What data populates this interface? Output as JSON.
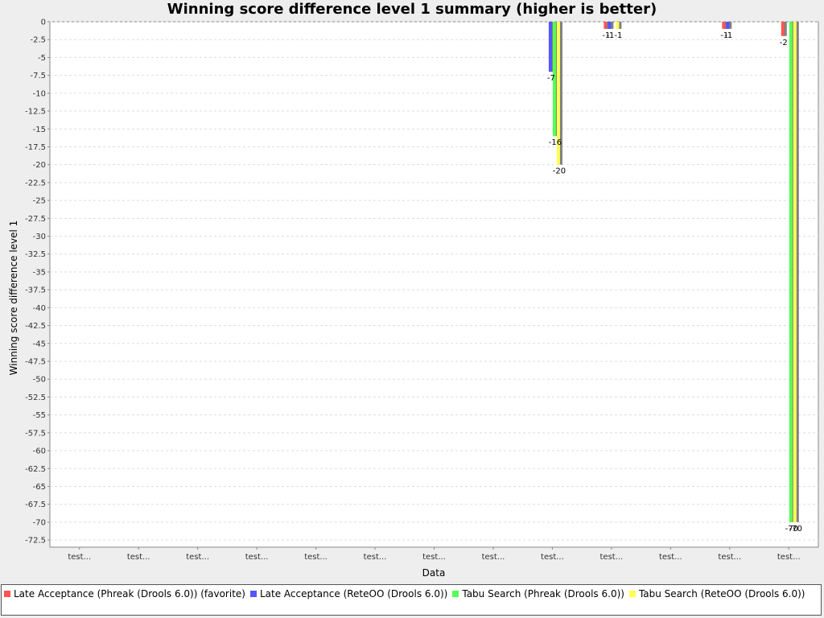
{
  "chart_data": {
    "type": "bar",
    "title": "Winning score difference level 1 summary (higher is better)",
    "xlabel": "Data",
    "ylabel": "Winning score difference level 1",
    "ylim": [
      -73.5,
      0
    ],
    "ytick_step": 2.5,
    "grid": true,
    "legend_position": "bottom",
    "categories": [
      "test...",
      "test...",
      "test...",
      "test...",
      "test...",
      "test...",
      "test...",
      "test...",
      "test...",
      "test...",
      "test...",
      "test...",
      "test..."
    ],
    "series": [
      {
        "name": "Late Acceptance (Phreak (Drools 6.0)) (favorite)",
        "color": "#ff5555",
        "values": [
          0,
          0,
          0,
          0,
          0,
          0,
          0,
          0,
          0,
          -1,
          0,
          -1,
          -2
        ]
      },
      {
        "name": "Late Acceptance (ReteOO (Drools 6.0))",
        "color": "#5555ff",
        "values": [
          0,
          0,
          0,
          0,
          0,
          0,
          0,
          0,
          -7,
          -1,
          0,
          -1,
          0
        ]
      },
      {
        "name": "Tabu Search (Phreak (Drools 6.0))",
        "color": "#55ff55",
        "values": [
          0,
          0,
          0,
          0,
          0,
          0,
          0,
          0,
          -16,
          0,
          0,
          0,
          -70
        ]
      },
      {
        "name": "Tabu Search (ReteOO (Drools 6.0))",
        "color": "#ffff55",
        "values": [
          0,
          0,
          0,
          0,
          0,
          0,
          0,
          0,
          -20,
          -1,
          0,
          0,
          -70
        ]
      }
    ]
  }
}
